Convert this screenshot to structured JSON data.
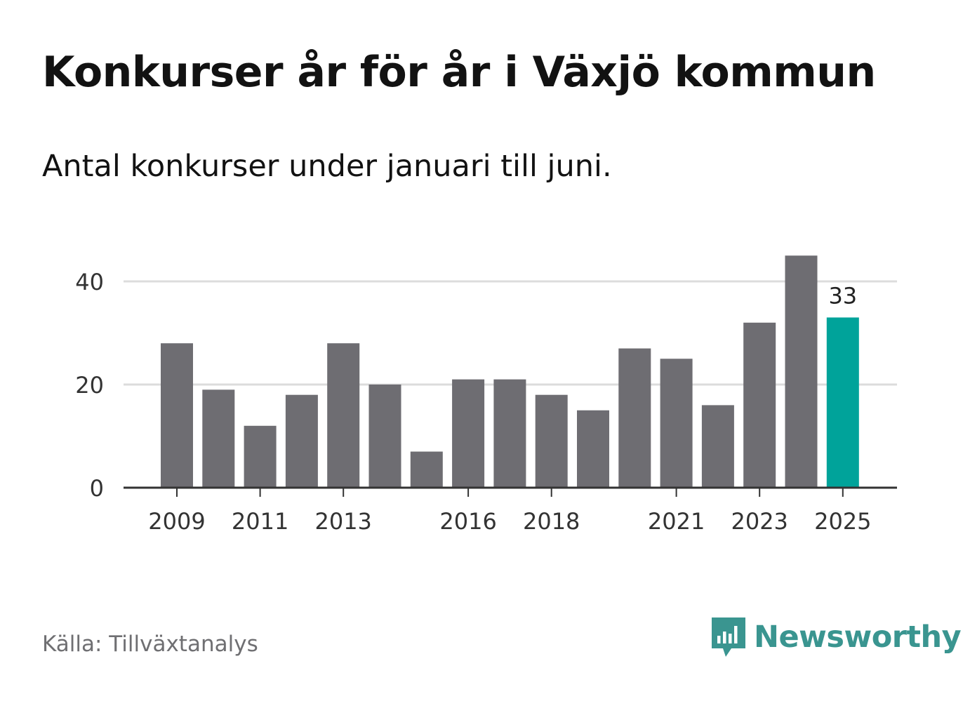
{
  "header": {
    "title": "Konkurser år för år i Växjö kommun",
    "subtitle": "Antal konkurser under januari till juni."
  },
  "footer": {
    "source": "Källa: Tillväxtanalys",
    "brand": "Newsworthy",
    "brand_icon": "newsworthy-logo-icon",
    "brand_color": "#3a9590"
  },
  "chart_data": {
    "type": "bar",
    "categories": [
      "2009",
      "2010",
      "2011",
      "2012",
      "2013",
      "2014",
      "2015",
      "2016",
      "2017",
      "2018",
      "2019",
      "2020",
      "2021",
      "2022",
      "2023",
      "2024",
      "2025"
    ],
    "values": [
      28,
      19,
      12,
      18,
      28,
      20,
      7,
      21,
      21,
      18,
      15,
      27,
      25,
      16,
      32,
      45,
      33
    ],
    "x_tick_labels": [
      "2009",
      "2011",
      "2013",
      "2016",
      "2018",
      "2021",
      "2023",
      "2025"
    ],
    "y_ticks": [
      0,
      20,
      40
    ],
    "ylim": [
      0,
      45
    ],
    "grid": true,
    "bar_color": "#6e6d72",
    "highlight": {
      "category": "2025",
      "color": "#00a39a",
      "label": "33"
    },
    "title": "",
    "xlabel": "",
    "ylabel": ""
  }
}
